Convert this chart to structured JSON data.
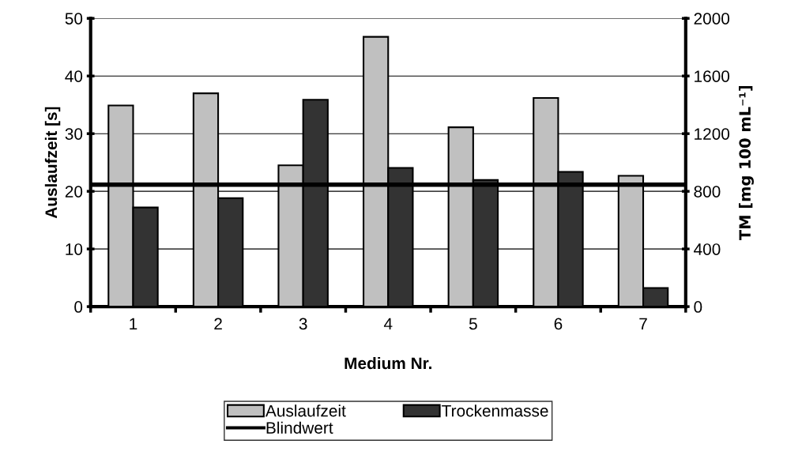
{
  "chart_data": {
    "type": "bar",
    "xlabel": "Medium Nr.",
    "ylabel": "Auslaufzeit [s]",
    "y2label": "TM [mg 100 mL⁻¹]",
    "categories": [
      "1",
      "2",
      "3",
      "4",
      "5",
      "6",
      "7"
    ],
    "series": [
      {
        "name": "Auslaufzeit",
        "color": "#c0c0c0",
        "values": [
          34.9,
          37.0,
          24.5,
          46.8,
          31.1,
          36.2,
          22.7
        ]
      },
      {
        "name": "Trockenmasse",
        "color": "#333333",
        "axis": "y2",
        "values": [
          688,
          753,
          1435,
          963,
          879,
          935,
          129
        ]
      }
    ],
    "ref_lines": [
      {
        "axis": "y2",
        "value": 846,
        "label": "Blindwert",
        "color": "#000000",
        "line_style": "solid"
      }
    ],
    "ylim": [
      0,
      50
    ],
    "yticks": [
      0,
      10,
      20,
      30,
      40,
      50
    ],
    "y2lim": [
      0,
      2000
    ],
    "y2ticks": [
      0,
      400,
      800,
      1200,
      1600,
      2000
    ],
    "grid": "y",
    "legend": "bottom"
  }
}
